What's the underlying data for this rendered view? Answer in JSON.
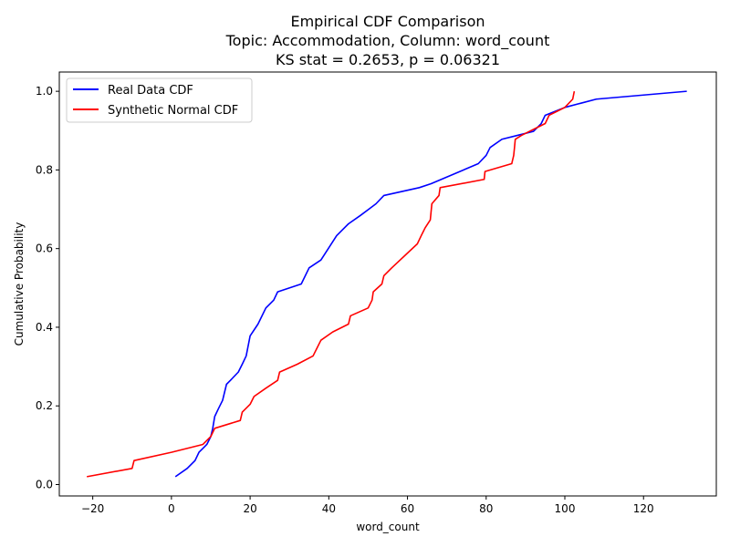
{
  "chart_data": {
    "type": "line",
    "title": [
      "Empirical CDF Comparison",
      "Topic: Accommodation, Column: word_count",
      "KS stat = 0.2653, p = 0.06321"
    ],
    "xlabel": "word_count",
    "ylabel": "Cumulative Probability",
    "xlim": [
      -28.5,
      138.5
    ],
    "ylim": [
      -0.029,
      1.049
    ],
    "xticks": [
      -20,
      0,
      20,
      40,
      60,
      80,
      100,
      120
    ],
    "yticks": [
      0.0,
      0.2,
      0.4,
      0.6,
      0.8,
      1.0
    ],
    "xtick_labels": [
      "−20",
      "0",
      "20",
      "40",
      "60",
      "80",
      "100",
      "120"
    ],
    "ytick_labels": [
      "0.0",
      "0.2",
      "0.4",
      "0.6",
      "0.8",
      "1.0"
    ],
    "grid": false,
    "legend_position": "upper-left",
    "series": [
      {
        "name": "Real Data CDF",
        "color": "#0000ff",
        "points": [
          [
            1,
            0.02
          ],
          [
            4,
            0.041
          ],
          [
            6,
            0.061
          ],
          [
            7,
            0.082
          ],
          [
            8,
            0.092
          ],
          [
            9,
            0.102
          ],
          [
            10,
            0.122
          ],
          [
            10.5,
            0.143
          ],
          [
            11,
            0.173
          ],
          [
            12,
            0.194
          ],
          [
            13,
            0.214
          ],
          [
            14,
            0.255
          ],
          [
            15,
            0.265
          ],
          [
            17,
            0.286
          ],
          [
            18,
            0.306
          ],
          [
            19,
            0.327
          ],
          [
            20,
            0.378
          ],
          [
            22,
            0.408
          ],
          [
            24,
            0.449
          ],
          [
            26,
            0.469
          ],
          [
            27,
            0.49
          ],
          [
            33,
            0.51
          ],
          [
            35,
            0.551
          ],
          [
            38,
            0.571
          ],
          [
            40,
            0.602
          ],
          [
            42,
            0.633
          ],
          [
            45,
            0.663
          ],
          [
            48,
            0.684
          ],
          [
            50,
            0.699
          ],
          [
            52,
            0.714
          ],
          [
            54,
            0.735
          ],
          [
            63,
            0.755
          ],
          [
            66,
            0.765
          ],
          [
            78,
            0.816
          ],
          [
            80,
            0.837
          ],
          [
            81,
            0.857
          ],
          [
            84,
            0.878
          ],
          [
            88,
            0.888
          ],
          [
            92,
            0.898
          ],
          [
            94,
            0.918
          ],
          [
            95,
            0.939
          ],
          [
            100,
            0.959
          ],
          [
            108,
            0.98
          ],
          [
            131,
            1.0
          ]
        ]
      },
      {
        "name": "Synthetic Normal CDF",
        "color": "#ff0000",
        "points": [
          [
            -21.5,
            0.02
          ],
          [
            -10,
            0.041
          ],
          [
            -9.5,
            0.061
          ],
          [
            0,
            0.082
          ],
          [
            8,
            0.102
          ],
          [
            10,
            0.122
          ],
          [
            11,
            0.143
          ],
          [
            17.5,
            0.163
          ],
          [
            18,
            0.184
          ],
          [
            20,
            0.204
          ],
          [
            21,
            0.224
          ],
          [
            24,
            0.245
          ],
          [
            27,
            0.265
          ],
          [
            27.5,
            0.286
          ],
          [
            32,
            0.306
          ],
          [
            36,
            0.327
          ],
          [
            38,
            0.367
          ],
          [
            41,
            0.388
          ],
          [
            45,
            0.408
          ],
          [
            45.5,
            0.429
          ],
          [
            50,
            0.449
          ],
          [
            51,
            0.469
          ],
          [
            51.3,
            0.49
          ],
          [
            53.5,
            0.51
          ],
          [
            54,
            0.531
          ],
          [
            56,
            0.551
          ],
          [
            62.5,
            0.612
          ],
          [
            63.5,
            0.633
          ],
          [
            64.5,
            0.653
          ],
          [
            65.8,
            0.673
          ],
          [
            66,
            0.694
          ],
          [
            66.2,
            0.714
          ],
          [
            68,
            0.735
          ],
          [
            68.3,
            0.755
          ],
          [
            79.5,
            0.776
          ],
          [
            79.7,
            0.796
          ],
          [
            86.5,
            0.816
          ],
          [
            87,
            0.837
          ],
          [
            87.2,
            0.857
          ],
          [
            87.4,
            0.878
          ],
          [
            89,
            0.888
          ],
          [
            95,
            0.918
          ],
          [
            96,
            0.939
          ],
          [
            98,
            0.949
          ],
          [
            100,
            0.959
          ],
          [
            102,
            0.98
          ],
          [
            102.4,
            1.0
          ]
        ]
      }
    ]
  }
}
